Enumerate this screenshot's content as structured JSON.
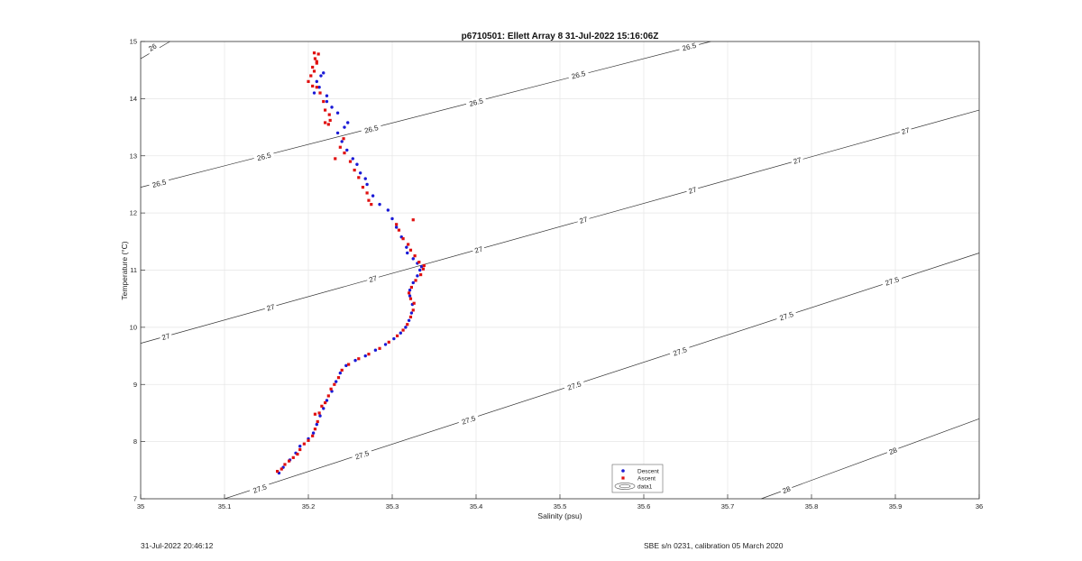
{
  "footer": {
    "left": "31-Jul-2022 20:46:12",
    "right": "SBE s/n 0231, calibration 05 March 2020"
  },
  "chart_data": {
    "type": "scatter",
    "title": "p6710501: Ellett Array 8 31-Jul-2022 15:16:06Z",
    "xlabel": "Salinity (psu)",
    "ylabel": "Temperature (°C)",
    "xlim": [
      35,
      36
    ],
    "ylim": [
      7,
      15
    ],
    "xticks": [
      "35",
      "35.1",
      "35.2",
      "35.3",
      "35.4",
      "35.5",
      "35.6",
      "35.7",
      "35.8",
      "35.9",
      "36"
    ],
    "yticks": [
      "7",
      "8",
      "9",
      "10",
      "11",
      "12",
      "13",
      "14",
      "15"
    ],
    "grid": true,
    "legend": {
      "position": "bottom-center",
      "entries": [
        "Descent",
        "Ascent",
        "data1"
      ]
    },
    "colors": {
      "descent": "#1a1ad6",
      "ascent": "#e01010",
      "contour": "#333333",
      "grid": "#e6e6e6"
    },
    "series": [
      {
        "name": "Descent",
        "marker": "dot",
        "points": [
          [
            35.165,
            7.45
          ],
          [
            35.17,
            7.55
          ],
          [
            35.178,
            7.68
          ],
          [
            35.185,
            7.8
          ],
          [
            35.19,
            7.92
          ],
          [
            35.2,
            8.05
          ],
          [
            35.206,
            8.15
          ],
          [
            35.21,
            8.3
          ],
          [
            35.214,
            8.45
          ],
          [
            35.218,
            8.58
          ],
          [
            35.222,
            8.72
          ],
          [
            35.228,
            8.88
          ],
          [
            35.233,
            9.05
          ],
          [
            35.238,
            9.2
          ],
          [
            35.245,
            9.33
          ],
          [
            35.256,
            9.42
          ],
          [
            35.268,
            9.5
          ],
          [
            35.28,
            9.6
          ],
          [
            35.292,
            9.7
          ],
          [
            35.302,
            9.8
          ],
          [
            35.31,
            9.9
          ],
          [
            35.316,
            10.0
          ],
          [
            35.32,
            10.12
          ],
          [
            35.323,
            10.25
          ],
          [
            35.324,
            10.4
          ],
          [
            35.321,
            10.55
          ],
          [
            35.321,
            10.65
          ],
          [
            35.325,
            10.78
          ],
          [
            35.33,
            10.9
          ],
          [
            35.333,
            11.0
          ],
          [
            35.335,
            11.06
          ],
          [
            35.33,
            11.12
          ],
          [
            35.325,
            11.2
          ],
          [
            35.318,
            11.3
          ],
          [
            35.317,
            11.4
          ],
          [
            35.311,
            11.58
          ],
          [
            35.305,
            11.75
          ],
          [
            35.3,
            11.9
          ],
          [
            35.295,
            12.05
          ],
          [
            35.285,
            12.15
          ],
          [
            35.277,
            12.3
          ],
          [
            35.27,
            12.5
          ],
          [
            35.268,
            12.6
          ],
          [
            35.262,
            12.7
          ],
          [
            35.258,
            12.85
          ],
          [
            35.253,
            12.95
          ],
          [
            35.246,
            13.1
          ],
          [
            35.24,
            13.25
          ],
          [
            35.235,
            13.4
          ],
          [
            35.243,
            13.5
          ],
          [
            35.247,
            13.58
          ],
          [
            35.235,
            13.75
          ],
          [
            35.228,
            13.85
          ],
          [
            35.222,
            14.05
          ],
          [
            35.222,
            13.95
          ],
          [
            35.213,
            14.2
          ],
          [
            35.215,
            14.4
          ],
          [
            35.218,
            14.45
          ],
          [
            35.21,
            14.3
          ],
          [
            35.207,
            14.1
          ]
        ]
      },
      {
        "name": "Ascent",
        "marker": "square",
        "points": [
          [
            35.163,
            7.48
          ],
          [
            35.168,
            7.52
          ],
          [
            35.172,
            7.6
          ],
          [
            35.177,
            7.66
          ],
          [
            35.182,
            7.72
          ],
          [
            35.187,
            7.78
          ],
          [
            35.19,
            7.86
          ],
          [
            35.195,
            7.96
          ],
          [
            35.2,
            8.02
          ],
          [
            35.205,
            8.1
          ],
          [
            35.208,
            8.22
          ],
          [
            35.211,
            8.35
          ],
          [
            35.208,
            8.48
          ],
          [
            35.213,
            8.5
          ],
          [
            35.216,
            8.62
          ],
          [
            35.22,
            8.68
          ],
          [
            35.224,
            8.8
          ],
          [
            35.227,
            8.92
          ],
          [
            35.231,
            9.0
          ],
          [
            35.236,
            9.12
          ],
          [
            35.24,
            9.25
          ],
          [
            35.248,
            9.35
          ],
          [
            35.26,
            9.45
          ],
          [
            35.272,
            9.53
          ],
          [
            35.285,
            9.63
          ],
          [
            35.296,
            9.74
          ],
          [
            35.306,
            9.85
          ],
          [
            35.313,
            9.95
          ],
          [
            35.318,
            10.05
          ],
          [
            35.322,
            10.18
          ],
          [
            35.325,
            10.3
          ],
          [
            35.326,
            10.42
          ],
          [
            35.322,
            10.5
          ],
          [
            35.32,
            10.6
          ],
          [
            35.323,
            10.7
          ],
          [
            35.328,
            10.82
          ],
          [
            35.334,
            10.92
          ],
          [
            35.337,
            11.02
          ],
          [
            35.338,
            11.08
          ],
          [
            35.332,
            11.14
          ],
          [
            35.327,
            11.25
          ],
          [
            35.322,
            11.35
          ],
          [
            35.319,
            11.45
          ],
          [
            35.313,
            11.55
          ],
          [
            35.325,
            11.88
          ],
          [
            35.308,
            11.7
          ],
          [
            35.305,
            11.8
          ],
          [
            35.275,
            12.15
          ],
          [
            35.272,
            12.22
          ],
          [
            35.27,
            12.35
          ],
          [
            35.265,
            12.45
          ],
          [
            35.26,
            12.62
          ],
          [
            35.255,
            12.75
          ],
          [
            35.25,
            12.9
          ],
          [
            35.243,
            13.05
          ],
          [
            35.232,
            12.95
          ],
          [
            35.238,
            13.15
          ],
          [
            35.242,
            13.3
          ],
          [
            35.224,
            13.55
          ],
          [
            35.22,
            13.58
          ],
          [
            35.226,
            13.62
          ],
          [
            35.225,
            13.72
          ],
          [
            35.22,
            13.8
          ],
          [
            35.218,
            13.95
          ],
          [
            35.214,
            14.1
          ],
          [
            35.21,
            14.2
          ],
          [
            35.205,
            14.22
          ],
          [
            35.2,
            14.3
          ],
          [
            35.203,
            14.4
          ],
          [
            35.207,
            14.48
          ],
          [
            35.205,
            14.55
          ],
          [
            35.21,
            14.62
          ],
          [
            35.21,
            14.65
          ],
          [
            35.208,
            14.7
          ],
          [
            35.212,
            14.78
          ],
          [
            35.207,
            14.8
          ]
        ]
      }
    ],
    "isopycnals": [
      {
        "label": "26",
        "line": [
          [
            35.0,
            14.7
          ],
          [
            35.035,
            15.0
          ]
        ],
        "label_at": [
          [
            35.014,
            14.9
          ]
        ]
      },
      {
        "label": "26.5",
        "line": [
          [
            35.0,
            12.45
          ],
          [
            35.68,
            15.0
          ]
        ],
        "label_at": [
          [
            35.022,
            12.52
          ],
          [
            35.147,
            12.99
          ],
          [
            35.275,
            13.47
          ],
          [
            35.4,
            13.94
          ],
          [
            35.522,
            14.42
          ],
          [
            35.654,
            14.91
          ]
        ]
      },
      {
        "label": "27",
        "line": [
          [
            35.0,
            9.72
          ],
          [
            36.0,
            13.8
          ]
        ],
        "label_at": [
          [
            35.03,
            9.84
          ],
          [
            35.155,
            10.35
          ],
          [
            35.277,
            10.85
          ],
          [
            35.403,
            11.36
          ],
          [
            35.528,
            11.88
          ],
          [
            35.658,
            12.4
          ],
          [
            35.783,
            12.92
          ],
          [
            35.912,
            13.44
          ]
        ]
      },
      {
        "label": "27.5",
        "line": [
          [
            35.1,
            7.0
          ],
          [
            36.0,
            11.3
          ]
        ],
        "label_at": [
          [
            35.142,
            7.18
          ],
          [
            35.264,
            7.77
          ],
          [
            35.391,
            8.38
          ],
          [
            35.517,
            8.98
          ],
          [
            35.643,
            9.58
          ],
          [
            35.77,
            10.2
          ],
          [
            35.896,
            10.81
          ]
        ]
      },
      {
        "label": "28",
        "line": [
          [
            35.74,
            7.0
          ],
          [
            36.0,
            8.4
          ]
        ],
        "label_at": [
          [
            35.77,
            7.16
          ],
          [
            35.897,
            7.84
          ]
        ]
      }
    ]
  }
}
